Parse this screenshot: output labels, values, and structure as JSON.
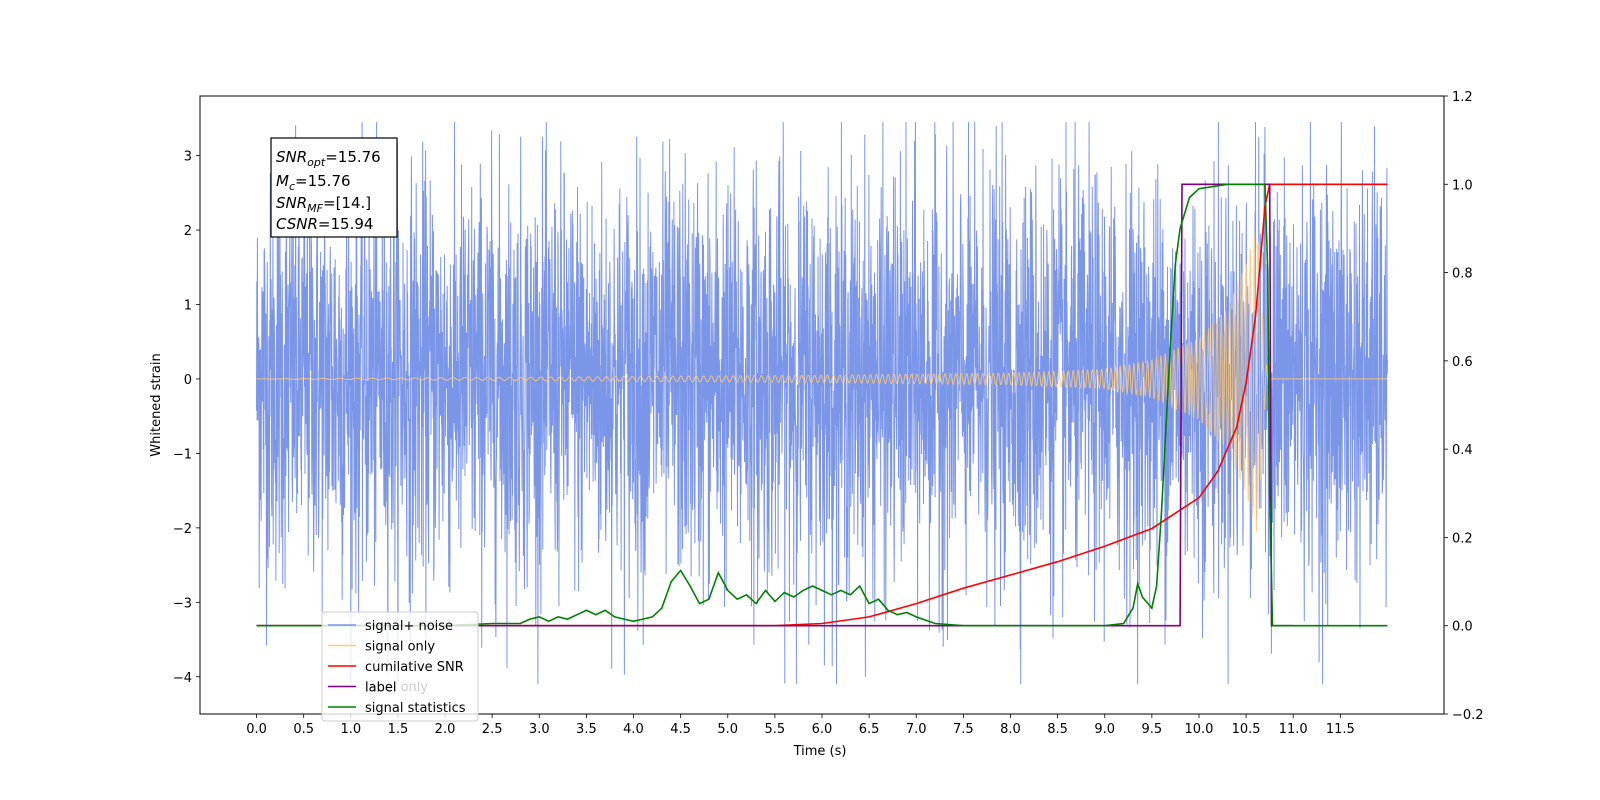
{
  "chart_data": {
    "type": "line",
    "xlabel": "Time (s)",
    "ylabel": "Whitened strain",
    "xlim": [
      -0.6,
      12.6
    ],
    "ylim_left": [
      -4.5,
      3.8
    ],
    "ylim_right": [
      -0.2,
      1.2
    ],
    "x_ticks": [
      "0.0",
      "0.5",
      "1.0",
      "1.5",
      "2.0",
      "2.5",
      "3.0",
      "3.5",
      "4.0",
      "4.5",
      "5.0",
      "5.5",
      "6.0",
      "6.5",
      "7.0",
      "7.5",
      "8.0",
      "8.5",
      "9.0",
      "9.5",
      "10.0",
      "10.5",
      "11.0",
      "11.5"
    ],
    "y_left_ticks": [
      "3",
      "2",
      "1",
      "0",
      "−1",
      "−2",
      "−3",
      "−4"
    ],
    "y_right_ticks": [
      "1.2",
      "1.0",
      "0.8",
      "0.6",
      "0.4",
      "0.2",
      "0.0",
      "−0.2"
    ],
    "annotation": {
      "snr_opt": {
        "base": "SNR",
        "sub": "opt",
        "value": "=15.76"
      },
      "mc": {
        "base": "M",
        "sub": "c",
        "value": "=15.76"
      },
      "snr_mf": {
        "base": "SNR",
        "sub": "MF",
        "value": "=[14.]"
      },
      "csnr": {
        "base": "CSNR",
        "sub": "",
        "value": "=15.94"
      }
    },
    "legend": {
      "placement": "lower-left",
      "entries": [
        {
          "label": "signal+ noise",
          "color": "#7b96e8"
        },
        {
          "label": "signal only",
          "color": "#ffc977"
        },
        {
          "label": "cumilative SNR",
          "color": "#ff0000"
        },
        {
          "label": "label",
          "color": "#800080"
        },
        {
          "label": "signal statistics",
          "color": "#008000"
        }
      ],
      "hidden_behind_legend": [
        "label only"
      ]
    },
    "series": [
      {
        "name": "signal+ noise",
        "axis": "left",
        "color": "#7b96e8",
        "x_range": [
          0.0,
          12.0
        ],
        "envelope": {
          "typical_amplitude": 2.2,
          "max": 3.45,
          "min": -4.1
        }
      },
      {
        "name": "signal only",
        "axis": "left",
        "color": "#ffc977",
        "x_range": [
          0.0,
          12.0
        ],
        "envelope_points": [
          [
            0.0,
            0.0
          ],
          [
            6.0,
            0.05
          ],
          [
            8.0,
            0.08
          ],
          [
            9.0,
            0.13
          ],
          [
            9.5,
            0.25
          ],
          [
            10.0,
            0.55
          ],
          [
            10.3,
            0.95
          ],
          [
            10.5,
            1.55
          ],
          [
            10.62,
            2.1
          ],
          [
            10.7,
            0.3
          ],
          [
            10.75,
            0.0
          ],
          [
            12.0,
            0.0
          ]
        ]
      },
      {
        "name": "cumilative SNR",
        "axis": "right",
        "color": "#ff0000",
        "points": [
          [
            0.0,
            0.0
          ],
          [
            5.5,
            0.0
          ],
          [
            6.0,
            0.005
          ],
          [
            6.5,
            0.02
          ],
          [
            7.0,
            0.05
          ],
          [
            7.5,
            0.085
          ],
          [
            8.0,
            0.115
          ],
          [
            8.5,
            0.145
          ],
          [
            9.0,
            0.18
          ],
          [
            9.5,
            0.22
          ],
          [
            10.0,
            0.29
          ],
          [
            10.2,
            0.35
          ],
          [
            10.4,
            0.45
          ],
          [
            10.5,
            0.55
          ],
          [
            10.6,
            0.7
          ],
          [
            10.65,
            0.82
          ],
          [
            10.7,
            0.95
          ],
          [
            10.75,
            1.0
          ],
          [
            12.0,
            1.0
          ]
        ]
      },
      {
        "name": "label",
        "axis": "right",
        "color": "#800080",
        "points": [
          [
            0.0,
            0.0
          ],
          [
            9.8,
            0.0
          ],
          [
            9.82,
            1.0
          ],
          [
            10.75,
            1.0
          ],
          [
            10.77,
            0.0
          ],
          [
            11.0,
            0.0
          ]
        ]
      },
      {
        "name": "signal statistics",
        "axis": "right",
        "color": "#008000",
        "points": [
          [
            0.0,
            0.0
          ],
          [
            1.0,
            0.0
          ],
          [
            2.0,
            0.0
          ],
          [
            2.5,
            0.005
          ],
          [
            2.8,
            0.005
          ],
          [
            2.9,
            0.015
          ],
          [
            3.0,
            0.02
          ],
          [
            3.1,
            0.01
          ],
          [
            3.2,
            0.02
          ],
          [
            3.3,
            0.015
          ],
          [
            3.4,
            0.025
          ],
          [
            3.5,
            0.035
          ],
          [
            3.6,
            0.025
          ],
          [
            3.7,
            0.035
          ],
          [
            3.8,
            0.02
          ],
          [
            3.9,
            0.015
          ],
          [
            4.0,
            0.01
          ],
          [
            4.1,
            0.015
          ],
          [
            4.2,
            0.02
          ],
          [
            4.3,
            0.04
          ],
          [
            4.4,
            0.1
          ],
          [
            4.5,
            0.125
          ],
          [
            4.6,
            0.09
          ],
          [
            4.7,
            0.05
          ],
          [
            4.8,
            0.06
          ],
          [
            4.9,
            0.12
          ],
          [
            5.0,
            0.08
          ],
          [
            5.1,
            0.06
          ],
          [
            5.2,
            0.07
          ],
          [
            5.3,
            0.05
          ],
          [
            5.4,
            0.08
          ],
          [
            5.5,
            0.055
          ],
          [
            5.6,
            0.075
          ],
          [
            5.7,
            0.065
          ],
          [
            5.8,
            0.08
          ],
          [
            5.9,
            0.09
          ],
          [
            6.0,
            0.08
          ],
          [
            6.1,
            0.07
          ],
          [
            6.2,
            0.08
          ],
          [
            6.3,
            0.07
          ],
          [
            6.4,
            0.09
          ],
          [
            6.5,
            0.05
          ],
          [
            6.6,
            0.06
          ],
          [
            6.7,
            0.035
          ],
          [
            6.8,
            0.025
          ],
          [
            6.9,
            0.03
          ],
          [
            7.0,
            0.02
          ],
          [
            7.2,
            0.005
          ],
          [
            7.5,
            0.0
          ],
          [
            8.0,
            0.0
          ],
          [
            9.0,
            0.0
          ],
          [
            9.2,
            0.005
          ],
          [
            9.3,
            0.04
          ],
          [
            9.35,
            0.095
          ],
          [
            9.4,
            0.065
          ],
          [
            9.5,
            0.04
          ],
          [
            9.55,
            0.09
          ],
          [
            9.6,
            0.25
          ],
          [
            9.65,
            0.45
          ],
          [
            9.7,
            0.65
          ],
          [
            9.75,
            0.82
          ],
          [
            9.8,
            0.9
          ],
          [
            9.9,
            0.97
          ],
          [
            10.0,
            0.99
          ],
          [
            10.3,
            1.0
          ],
          [
            10.7,
            1.0
          ],
          [
            10.73,
            0.8
          ],
          [
            10.75,
            0.3
          ],
          [
            10.78,
            0.0
          ],
          [
            12.0,
            0.0
          ]
        ]
      }
    ]
  }
}
